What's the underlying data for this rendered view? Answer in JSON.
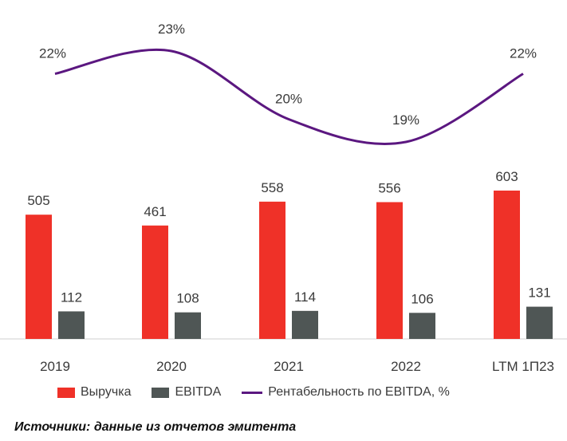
{
  "chart_data": {
    "type": "bar",
    "categories": [
      "2019",
      "2020",
      "2021",
      "2022",
      "LTM 1П23"
    ],
    "series": [
      {
        "name": "Выручка",
        "values": [
          505,
          461,
          558,
          556,
          603
        ],
        "labels": [
          "505",
          "461",
          "558",
          "556",
          "603"
        ],
        "color": "#ef3128"
      },
      {
        "name": "EBITDA",
        "values": [
          112,
          108,
          114,
          106,
          131
        ],
        "labels": [
          "112",
          "108",
          "114",
          "106",
          "131"
        ],
        "color": "#4f5655"
      }
    ],
    "line_series": {
      "name": "Рентабельность по EBITDA, %",
      "values": [
        22,
        23,
        20,
        19,
        22
      ],
      "labels": [
        "22%",
        "23%",
        "20%",
        "19%",
        "22%"
      ],
      "color": "#5b1780"
    },
    "ylim": [
      0,
      650
    ],
    "grid": false,
    "legend_position": "bottom"
  },
  "source": "Источники: данные из отчетов эмитента"
}
